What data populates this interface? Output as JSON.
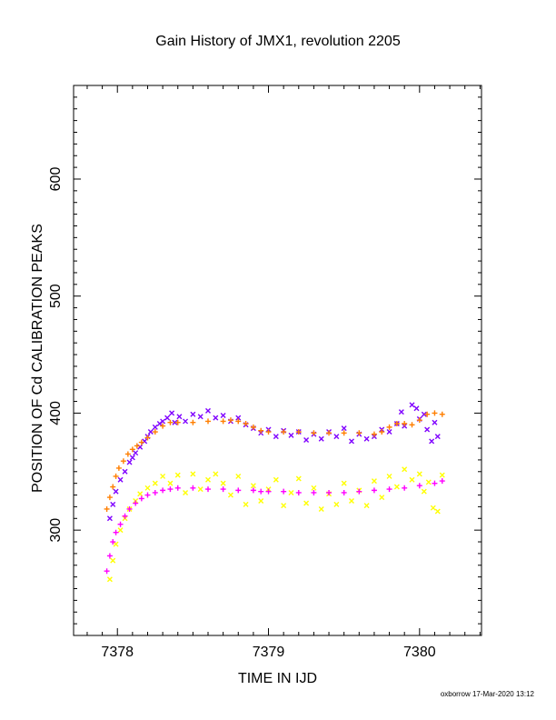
{
  "chart_data": {
    "type": "scatter",
    "title": "Gain History of JMX1, revolution 2205",
    "xlabel": "TIME IN IJD",
    "ylabel": "POSITION OF Cd CALIBRATION PEAKS",
    "xlim": [
      7377.71,
      7380.41
    ],
    "ylim": [
      210,
      680
    ],
    "x_ticks": [
      7378,
      7379,
      7380
    ],
    "y_ticks": [
      300,
      400,
      500,
      600
    ],
    "grid": false,
    "series": [
      {
        "color": "#7f00ff",
        "marker": "x",
        "points": [
          [
            7377.95,
            310
          ],
          [
            7377.97,
            322
          ],
          [
            7377.99,
            333
          ],
          [
            7378.02,
            343
          ],
          [
            7378.05,
            350
          ],
          [
            7378.08,
            358
          ],
          [
            7378.1,
            362
          ],
          [
            7378.12,
            366
          ],
          [
            7378.15,
            371
          ],
          [
            7378.18,
            376
          ],
          [
            7378.2,
            380
          ],
          [
            7378.22,
            384
          ],
          [
            7378.25,
            388
          ],
          [
            7378.28,
            391
          ],
          [
            7378.3,
            393
          ],
          [
            7378.33,
            396
          ],
          [
            7378.36,
            400
          ],
          [
            7378.38,
            392
          ],
          [
            7378.41,
            397
          ],
          [
            7378.45,
            393
          ],
          [
            7378.5,
            399
          ],
          [
            7378.55,
            397
          ],
          [
            7378.6,
            402
          ],
          [
            7378.65,
            396
          ],
          [
            7378.7,
            398
          ],
          [
            7378.75,
            393
          ],
          [
            7378.8,
            396
          ],
          [
            7378.85,
            390
          ],
          [
            7378.9,
            387
          ],
          [
            7378.95,
            383
          ],
          [
            7379.0,
            386
          ],
          [
            7379.05,
            380
          ],
          [
            7379.1,
            385
          ],
          [
            7379.15,
            381
          ],
          [
            7379.2,
            384
          ],
          [
            7379.25,
            377
          ],
          [
            7379.3,
            382
          ],
          [
            7379.35,
            378
          ],
          [
            7379.4,
            384
          ],
          [
            7379.45,
            380
          ],
          [
            7379.5,
            387
          ],
          [
            7379.55,
            376
          ],
          [
            7379.6,
            382
          ],
          [
            7379.65,
            378
          ],
          [
            7379.7,
            380
          ],
          [
            7379.75,
            386
          ],
          [
            7379.8,
            384
          ],
          [
            7379.85,
            391
          ],
          [
            7379.88,
            401
          ],
          [
            7379.9,
            389
          ],
          [
            7379.95,
            407
          ],
          [
            7379.98,
            404
          ],
          [
            7380.0,
            395
          ],
          [
            7380.03,
            399
          ],
          [
            7380.05,
            386
          ],
          [
            7380.08,
            376
          ],
          [
            7380.1,
            392
          ],
          [
            7380.12,
            380
          ]
        ]
      },
      {
        "color": "#ff7f00",
        "marker": "+",
        "points": [
          [
            7377.93,
            318
          ],
          [
            7377.95,
            328
          ],
          [
            7377.97,
            337
          ],
          [
            7377.99,
            346
          ],
          [
            7378.01,
            353
          ],
          [
            7378.04,
            359
          ],
          [
            7378.07,
            365
          ],
          [
            7378.1,
            369
          ],
          [
            7378.13,
            372
          ],
          [
            7378.16,
            375
          ],
          [
            7378.2,
            379
          ],
          [
            7378.25,
            384
          ],
          [
            7378.3,
            389
          ],
          [
            7378.35,
            392
          ],
          [
            7378.4,
            392
          ],
          [
            7378.5,
            392
          ],
          [
            7378.6,
            393
          ],
          [
            7378.7,
            393
          ],
          [
            7378.75,
            394
          ],
          [
            7378.8,
            393
          ],
          [
            7378.85,
            391
          ],
          [
            7378.9,
            388
          ],
          [
            7378.95,
            385
          ],
          [
            7379.0,
            384
          ],
          [
            7379.1,
            384
          ],
          [
            7379.2,
            384
          ],
          [
            7379.3,
            383
          ],
          [
            7379.4,
            383
          ],
          [
            7379.5,
            383
          ],
          [
            7379.6,
            383
          ],
          [
            7379.7,
            382
          ],
          [
            7379.75,
            384
          ],
          [
            7379.8,
            388
          ],
          [
            7379.85,
            391
          ],
          [
            7379.9,
            391
          ],
          [
            7379.95,
            390
          ],
          [
            7380.0,
            394
          ],
          [
            7380.05,
            399
          ],
          [
            7380.1,
            400
          ],
          [
            7380.15,
            399
          ]
        ]
      },
      {
        "color": "#ffff00",
        "marker": "x",
        "points": [
          [
            7377.95,
            258
          ],
          [
            7377.97,
            274
          ],
          [
            7377.99,
            288
          ],
          [
            7378.02,
            300
          ],
          [
            7378.05,
            310
          ],
          [
            7378.08,
            318
          ],
          [
            7378.12,
            325
          ],
          [
            7378.15,
            331
          ],
          [
            7378.2,
            336
          ],
          [
            7378.25,
            340
          ],
          [
            7378.3,
            346
          ],
          [
            7378.35,
            340
          ],
          [
            7378.4,
            347
          ],
          [
            7378.45,
            332
          ],
          [
            7378.5,
            348
          ],
          [
            7378.55,
            335
          ],
          [
            7378.6,
            343
          ],
          [
            7378.65,
            348
          ],
          [
            7378.7,
            340
          ],
          [
            7378.75,
            330
          ],
          [
            7378.8,
            346
          ],
          [
            7378.85,
            322
          ],
          [
            7378.9,
            338
          ],
          [
            7378.95,
            325
          ],
          [
            7379.0,
            335
          ],
          [
            7379.05,
            343
          ],
          [
            7379.1,
            321
          ],
          [
            7379.15,
            332
          ],
          [
            7379.2,
            344
          ],
          [
            7379.25,
            323
          ],
          [
            7379.3,
            336
          ],
          [
            7379.35,
            318
          ],
          [
            7379.4,
            331
          ],
          [
            7379.45,
            322
          ],
          [
            7379.5,
            340
          ],
          [
            7379.55,
            325
          ],
          [
            7379.6,
            334
          ],
          [
            7379.65,
            321
          ],
          [
            7379.7,
            342
          ],
          [
            7379.75,
            328
          ],
          [
            7379.8,
            346
          ],
          [
            7379.85,
            337
          ],
          [
            7379.9,
            352
          ],
          [
            7379.95,
            343
          ],
          [
            7380.0,
            348
          ],
          [
            7380.03,
            333
          ],
          [
            7380.06,
            341
          ],
          [
            7380.09,
            319
          ],
          [
            7380.12,
            316
          ],
          [
            7380.15,
            347
          ]
        ]
      },
      {
        "color": "#ff00ff",
        "marker": "+",
        "points": [
          [
            7377.93,
            265
          ],
          [
            7377.95,
            278
          ],
          [
            7377.97,
            290
          ],
          [
            7377.99,
            298
          ],
          [
            7378.02,
            305
          ],
          [
            7378.05,
            312
          ],
          [
            7378.08,
            318
          ],
          [
            7378.12,
            323
          ],
          [
            7378.16,
            327
          ],
          [
            7378.2,
            330
          ],
          [
            7378.25,
            332
          ],
          [
            7378.3,
            334
          ],
          [
            7378.35,
            335
          ],
          [
            7378.4,
            336
          ],
          [
            7378.5,
            336
          ],
          [
            7378.6,
            335
          ],
          [
            7378.7,
            335
          ],
          [
            7378.8,
            334
          ],
          [
            7378.9,
            334
          ],
          [
            7378.95,
            333
          ],
          [
            7379.0,
            333
          ],
          [
            7379.1,
            333
          ],
          [
            7379.2,
            332
          ],
          [
            7379.3,
            332
          ],
          [
            7379.4,
            332
          ],
          [
            7379.5,
            332
          ],
          [
            7379.6,
            333
          ],
          [
            7379.7,
            334
          ],
          [
            7379.8,
            335
          ],
          [
            7379.9,
            336
          ],
          [
            7380.0,
            338
          ],
          [
            7380.1,
            340
          ],
          [
            7380.15,
            342
          ]
        ]
      }
    ]
  },
  "footer": {
    "credit": "oxborrow 17-Mar-2020 13:12"
  }
}
